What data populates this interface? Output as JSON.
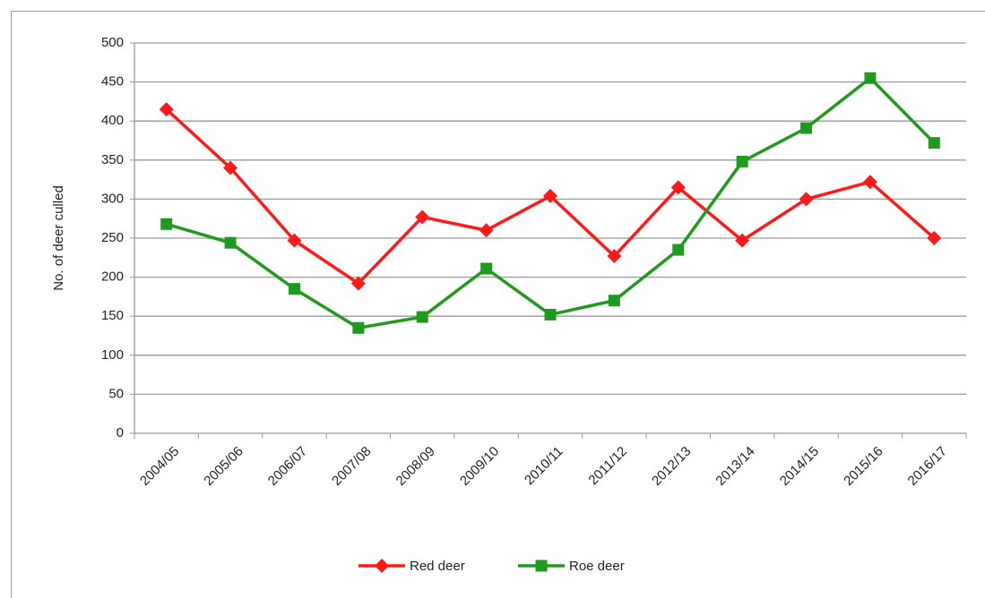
{
  "chart_data": {
    "type": "line",
    "y_label": "No. of deer culled",
    "categories": [
      "2004/05",
      "2005/06",
      "2006/07",
      "2007/08",
      "2008/09",
      "2009/10",
      "2010/11",
      "2011/12",
      "2012/13",
      "2013/14",
      "2014/15",
      "2015/16",
      "2016/17"
    ],
    "series": [
      {
        "name": "Red deer",
        "color": "#ff1a1a",
        "marker": "diamond",
        "values": [
          415,
          340,
          247,
          192,
          277,
          260,
          304,
          227,
          315,
          247,
          300,
          322,
          250
        ]
      },
      {
        "name": "Roe deer",
        "color": "#1f9a1f",
        "marker": "square",
        "values": [
          268,
          244,
          185,
          135,
          149,
          211,
          152,
          170,
          235,
          348,
          391,
          455,
          372
        ]
      }
    ],
    "ylim": [
      0,
      500
    ],
    "yticks": [
      0,
      50,
      100,
      150,
      200,
      250,
      300,
      350,
      400,
      450,
      500
    ],
    "grid": true,
    "legend": "bottom"
  }
}
